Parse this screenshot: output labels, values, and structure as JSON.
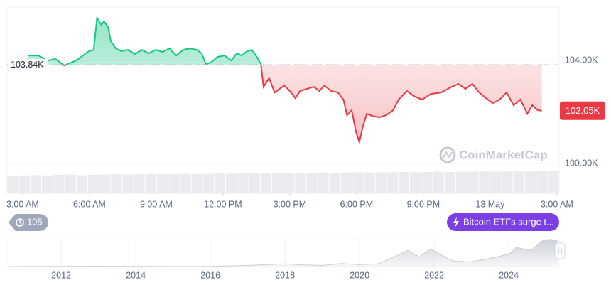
{
  "chart_data": {
    "type": "line",
    "x": [
      0.25,
      0.71,
      1.11,
      1.48,
      1.86,
      2.41,
      2.97,
      3.19,
      3.34,
      3.53,
      3.65,
      3.84,
      3.96,
      4.18,
      4.42,
      4.73,
      5.04,
      5.35,
      5.66,
      5.97,
      6.28,
      6.59,
      6.9,
      7.21,
      7.52,
      7.82,
      8.04,
      8.23,
      8.44,
      8.75,
      9.06,
      9.37,
      9.62,
      9.84,
      10.08,
      10.3,
      10.52,
      10.7,
      10.82,
      11.07,
      11.32,
      11.54,
      11.75,
      12.0,
      12.25,
      12.46,
      12.77,
      13.08,
      13.33,
      13.55,
      13.86,
      14.16,
      14.41,
      14.57,
      14.78,
      14.97,
      15.12,
      15.28,
      15.46,
      15.71,
      16.02,
      16.33,
      16.64,
      16.89,
      17.26,
      17.57,
      17.94,
      18.34,
      18.8,
      19.27,
      19.58,
      19.89,
      20.2,
      20.51,
      20.81,
      21.12,
      21.43,
      21.74,
      22.05,
      22.36,
      22.67,
      22.89,
      23.14,
      23.32
    ],
    "values": [
      104193,
      104193,
      104000,
      104055,
      103807,
      104000,
      104359,
      104414,
      105655,
      105380,
      105517,
      105297,
      104745,
      104469,
      104359,
      104414,
      104248,
      104414,
      104276,
      104414,
      104331,
      104469,
      104193,
      104414,
      104469,
      104414,
      104276,
      103862,
      103917,
      104138,
      104193,
      104000,
      104276,
      104193,
      104359,
      104414,
      104138,
      103862,
      102979,
      103310,
      102759,
      102896,
      103034,
      102814,
      102538,
      102814,
      102896,
      102979,
      102814,
      103034,
      102814,
      102759,
      102483,
      101876,
      102069,
      101241,
      100827,
      101434,
      101931,
      101848,
      101793,
      101876,
      102069,
      102483,
      102814,
      102621,
      102483,
      102703,
      102759,
      102979,
      103090,
      102896,
      103090,
      102759,
      102538,
      102345,
      102483,
      102759,
      102262,
      102483,
      101931,
      102262,
      102069,
      102050
    ],
    "up_color": "#16c784",
    "down_color": "#ea3943",
    "xlim": [
      -0.7,
      24.1
    ],
    "xticks": [
      {
        "value": 0,
        "label": "3:00 AM"
      },
      {
        "value": 3,
        "label": "6:00 AM"
      },
      {
        "value": 6,
        "label": "9:00 AM"
      },
      {
        "value": 9,
        "label": "12:00 PM"
      },
      {
        "value": 12,
        "label": "3:00 PM"
      },
      {
        "value": 15,
        "label": "6:00 PM"
      },
      {
        "value": 18,
        "label": "9:00 PM"
      },
      {
        "value": 21,
        "label": "13 May"
      },
      {
        "value": 24,
        "label": "3:00 AM"
      }
    ],
    "ylim": [
      98900,
      106070
    ],
    "yticks": [
      {
        "value": 104000,
        "label": "104.00K"
      },
      {
        "value": 100000,
        "label": "100.00K"
      }
    ],
    "baseline": {
      "value": 103840,
      "label": "103.84K"
    },
    "current_price": {
      "value": 102050,
      "label": "102.05K"
    },
    "volume": {
      "color": "#e9ebef",
      "ylim": [
        0,
        100
      ],
      "values": [
        62,
        63,
        64,
        63,
        65,
        66,
        64,
        65,
        66,
        67,
        66,
        67,
        68,
        67,
        68,
        69,
        68,
        69,
        70,
        69,
        70,
        71,
        70,
        71,
        72,
        71,
        72,
        73,
        72,
        73,
        74,
        73,
        74,
        74,
        75,
        74,
        75,
        76,
        75,
        76,
        76,
        77,
        76,
        77,
        78,
        77,
        78,
        78
      ]
    },
    "watermark": "CoinMarketCap",
    "history_count": 105,
    "event_label": "Bitcoin ETFs surge t...",
    "overview": {
      "color": "#c9ccd3",
      "xlim": [
        2010.55,
        2025.35
      ],
      "ylim": [
        0,
        110
      ],
      "xticks": [
        2012,
        2014,
        2016,
        2018,
        2020,
        2022,
        2024
      ],
      "x": [
        2010.6,
        2011,
        2012,
        2013,
        2014,
        2015,
        2016,
        2017,
        2018,
        2018.5,
        2019,
        2019.5,
        2020,
        2020.5,
        2021,
        2021.3,
        2021.6,
        2021.9,
        2022.5,
        2023,
        2023.5,
        2024,
        2024.2,
        2024.6,
        2024.9,
        2025.1,
        2025.3
      ],
      "values": [
        0,
        0.3,
        0.5,
        1,
        0.5,
        0.3,
        0.6,
        4,
        10,
        6,
        4,
        11,
        7,
        10,
        40,
        60,
        35,
        65,
        20,
        17,
        30,
        45,
        70,
        60,
        95,
        100,
        97
      ]
    }
  }
}
